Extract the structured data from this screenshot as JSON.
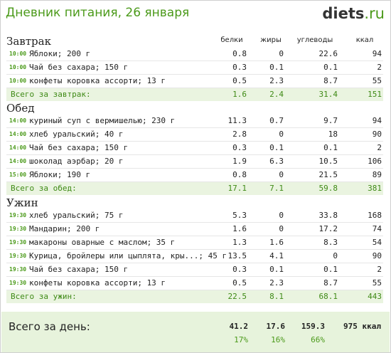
{
  "header": {
    "title": "Дневник питания, 26 января",
    "brand_main": "diets",
    "brand_tld": ".ru"
  },
  "columns": {
    "protein": "белки",
    "fat": "жиры",
    "carbs": "углеводы",
    "kcal": "ккал"
  },
  "meals": [
    {
      "title": "Завтрак",
      "items": [
        {
          "time": "10:00",
          "name": "Яблоки; 200 г",
          "p": "0.8",
          "f": "0",
          "c": "22.6",
          "k": "94"
        },
        {
          "time": "10:00",
          "name": "Чай без сахара; 150 г",
          "p": "0.3",
          "f": "0.1",
          "c": "0.1",
          "k": "2"
        },
        {
          "time": "10:00",
          "name": "конфеты коровка ассорти; 13 г",
          "p": "0.5",
          "f": "2.3",
          "c": "8.7",
          "k": "55"
        }
      ],
      "total": {
        "label": "Всего за завтрак:",
        "p": "1.6",
        "f": "2.4",
        "c": "31.4",
        "k": "151"
      }
    },
    {
      "title": "Обед",
      "items": [
        {
          "time": "14:00",
          "name": "куриный суп с вермишелью; 230 г",
          "p": "11.3",
          "f": "0.7",
          "c": "9.7",
          "k": "94"
        },
        {
          "time": "14:00",
          "name": "хлеб уральский; 40 г",
          "p": "2.8",
          "f": "0",
          "c": "18",
          "k": "90"
        },
        {
          "time": "14:00",
          "name": "Чай без сахара; 150 г",
          "p": "0.3",
          "f": "0.1",
          "c": "0.1",
          "k": "2"
        },
        {
          "time": "14:00",
          "name": "шоколад аэрбар; 20 г",
          "p": "1.9",
          "f": "6.3",
          "c": "10.5",
          "k": "106"
        },
        {
          "time": "15:00",
          "name": "Яблоки; 190 г",
          "p": "0.8",
          "f": "0",
          "c": "21.5",
          "k": "89"
        }
      ],
      "total": {
        "label": "Всего за обед:",
        "p": "17.1",
        "f": "7.1",
        "c": "59.8",
        "k": "381"
      }
    },
    {
      "title": "Ужин",
      "items": [
        {
          "time": "19:30",
          "name": "хлеб уральский; 75 г",
          "p": "5.3",
          "f": "0",
          "c": "33.8",
          "k": "168"
        },
        {
          "time": "19:30",
          "name": "Мандарин; 200 г",
          "p": "1.6",
          "f": "0",
          "c": "17.2",
          "k": "74"
        },
        {
          "time": "19:30",
          "name": "макароны оварные с маслом; 35 г",
          "p": "1.3",
          "f": "1.6",
          "c": "8.3",
          "k": "54"
        },
        {
          "time": "19:30",
          "name": "Курица, бройлеры или цыплята, кры...; 45 г",
          "p": "13.5",
          "f": "4.1",
          "c": "0",
          "k": "90"
        },
        {
          "time": "19:30",
          "name": "Чай без сахара; 150 г",
          "p": "0.3",
          "f": "0.1",
          "c": "0.1",
          "k": "2"
        },
        {
          "time": "19:30",
          "name": "конфеты коровка ассорти; 13 г",
          "p": "0.5",
          "f": "2.3",
          "c": "8.7",
          "k": "55"
        }
      ],
      "total": {
        "label": "Всего за ужин:",
        "p": "22.5",
        "f": "8.1",
        "c": "68.1",
        "k": "443"
      }
    }
  ],
  "day": {
    "label": "Всего за день:",
    "p": "41.2",
    "f": "17.6",
    "c": "159.3",
    "k": "975 ккал",
    "p_pct": "17%",
    "f_pct": "16%",
    "c_pct": "66%"
  },
  "colors": {
    "accent": "#4b9a1a",
    "total_bg": "#eaf4e0",
    "day_bg": "#e7f3dc"
  }
}
